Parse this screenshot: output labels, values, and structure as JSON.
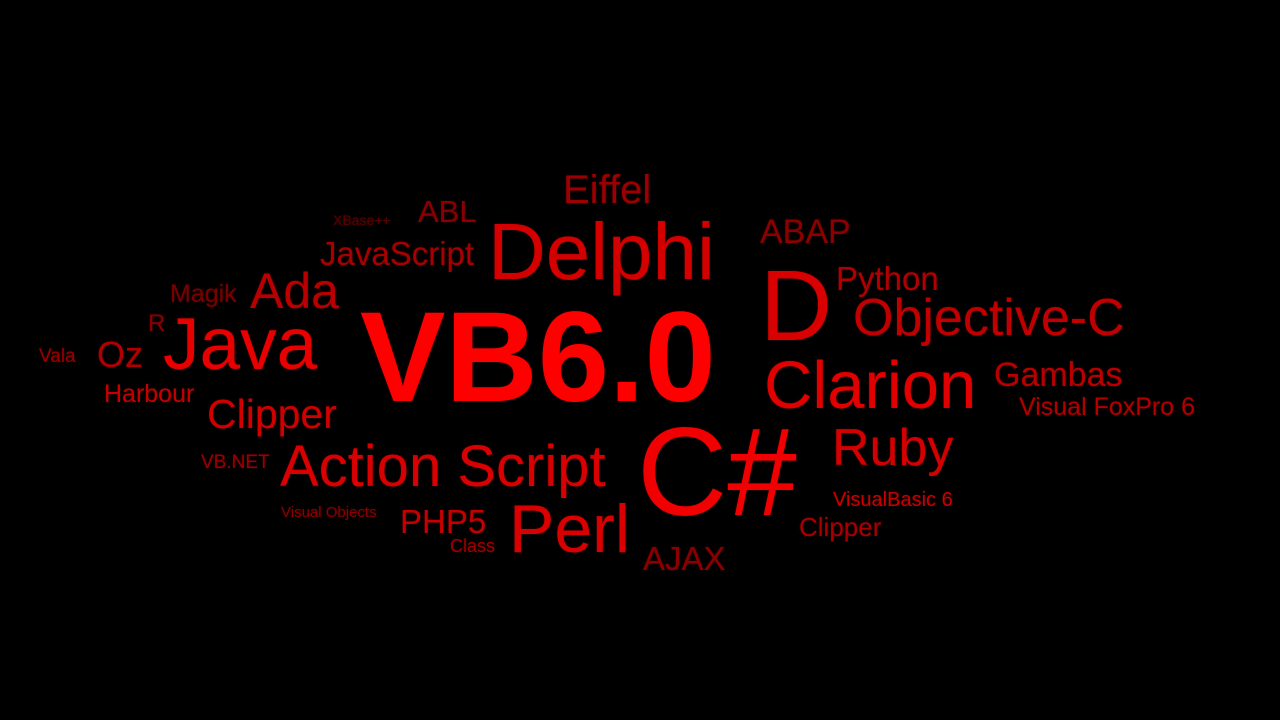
{
  "words": {
    "xbase": "XBase++",
    "abl": "ABL",
    "eiffel": "Eiffel",
    "javascript": "JavaScript",
    "delphi": "Delphi",
    "abap": "ABAP",
    "magik": "Magik",
    "ada": "Ada",
    "d": "D",
    "python": "Python",
    "r": "R",
    "objc": "Objective-C",
    "vala": "Vala",
    "oz": "Oz",
    "java": "Java",
    "vb6": "VB6.0",
    "clarion": "Clarion",
    "gambas": "Gambas",
    "harbour": "Harbour",
    "clipper1": "Clipper",
    "vfp": "Visual FoxPro 6",
    "ruby": "Ruby",
    "csharp": "C#",
    "vbnet": "VB.NET",
    "action": "Action Script",
    "vb6b": "VisualBasic 6",
    "visobj": "Visual Objects",
    "php5": "PHP5",
    "perl": "Perl",
    "clipper2": "Clipper",
    "class": "Class",
    "ajax": "AJAX"
  },
  "colors": {
    "background": "#000000",
    "accent": "#ff0000"
  }
}
